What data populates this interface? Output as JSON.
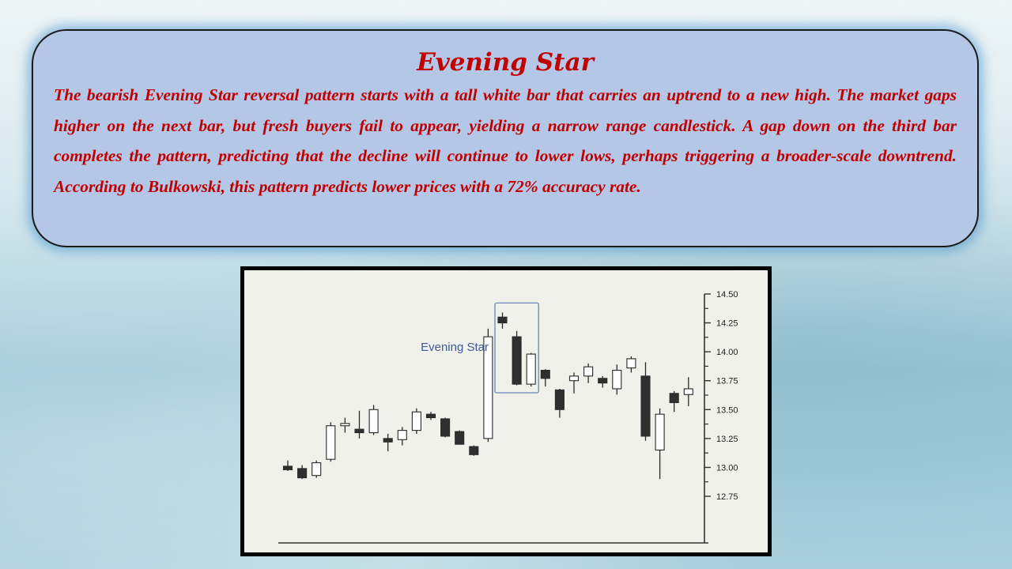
{
  "slide": {
    "title": "Evening Star",
    "body": "The bearish Evening Star reversal pattern starts with a tall white bar that carries an uptrend to a new high. The market gaps higher on the next bar, but fresh buyers fail to appear, yielding a narrow range candlestick. A gap down on the third bar completes the pattern, predicting that the decline will continue to lower lows, perhaps triggering a broader-scale downtrend. According to Bulkowski, this pattern predicts lower prices with a 72% accuracy rate."
  },
  "chart_data": {
    "type": "candlestick",
    "title": "",
    "xlabel": "",
    "ylabel": "",
    "ylim": [
      12.75,
      14.5
    ],
    "yticks": [
      "14.50",
      "14.25",
      "14.00",
      "13.75",
      "13.50",
      "13.25",
      "13.00",
      "12.75"
    ],
    "annotation": "Evening Star",
    "pattern_candles": [
      15,
      16,
      17
    ],
    "colors": {
      "bearish": "#2f2f2f",
      "bullish": "#ffffff",
      "box": "#6f85b8",
      "annotation": "#3f5a94"
    },
    "candles": [
      {
        "o": 13.01,
        "h": 13.06,
        "l": 12.97,
        "c": 12.98
      },
      {
        "o": 12.99,
        "h": 13.02,
        "l": 12.9,
        "c": 12.91
      },
      {
        "o": 12.93,
        "h": 13.06,
        "l": 12.91,
        "c": 13.04
      },
      {
        "o": 13.07,
        "h": 13.39,
        "l": 13.05,
        "c": 13.36
      },
      {
        "o": 13.36,
        "h": 13.43,
        "l": 13.3,
        "c": 13.38
      },
      {
        "o": 13.33,
        "h": 13.49,
        "l": 13.25,
        "c": 13.3
      },
      {
        "o": 13.3,
        "h": 13.54,
        "l": 13.28,
        "c": 13.5
      },
      {
        "o": 13.25,
        "h": 13.29,
        "l": 13.14,
        "c": 13.22
      },
      {
        "o": 13.24,
        "h": 13.35,
        "l": 13.19,
        "c": 13.32
      },
      {
        "o": 13.32,
        "h": 13.51,
        "l": 13.29,
        "c": 13.48
      },
      {
        "o": 13.46,
        "h": 13.48,
        "l": 13.41,
        "c": 13.43
      },
      {
        "o": 13.42,
        "h": 13.43,
        "l": 13.26,
        "c": 13.27
      },
      {
        "o": 13.31,
        "h": 13.32,
        "l": 13.2,
        "c": 13.2
      },
      {
        "o": 13.18,
        "h": 13.19,
        "l": 13.1,
        "c": 13.11
      },
      {
        "o": 13.25,
        "h": 14.2,
        "l": 13.22,
        "c": 14.13
      },
      {
        "o": 14.3,
        "h": 14.34,
        "l": 14.2,
        "c": 14.25
      },
      {
        "o": 14.13,
        "h": 14.18,
        "l": 13.71,
        "c": 13.72
      },
      {
        "o": 13.72,
        "h": 13.99,
        "l": 13.7,
        "c": 13.98
      },
      {
        "o": 13.84,
        "h": 13.85,
        "l": 13.7,
        "c": 13.77
      },
      {
        "o": 13.67,
        "h": 13.68,
        "l": 13.43,
        "c": 13.5
      },
      {
        "o": 13.75,
        "h": 13.82,
        "l": 13.64,
        "c": 13.79
      },
      {
        "o": 13.79,
        "h": 13.9,
        "l": 13.73,
        "c": 13.87
      },
      {
        "o": 13.77,
        "h": 13.79,
        "l": 13.69,
        "c": 13.73
      },
      {
        "o": 13.68,
        "h": 13.89,
        "l": 13.63,
        "c": 13.84
      },
      {
        "o": 13.86,
        "h": 13.96,
        "l": 13.82,
        "c": 13.94
      },
      {
        "o": 13.79,
        "h": 13.91,
        "l": 13.23,
        "c": 13.27
      },
      {
        "o": 13.15,
        "h": 13.51,
        "l": 12.9,
        "c": 13.46
      },
      {
        "o": 13.64,
        "h": 13.66,
        "l": 13.48,
        "c": 13.56
      },
      {
        "o": 13.63,
        "h": 13.78,
        "l": 13.53,
        "c": 13.68
      }
    ]
  }
}
